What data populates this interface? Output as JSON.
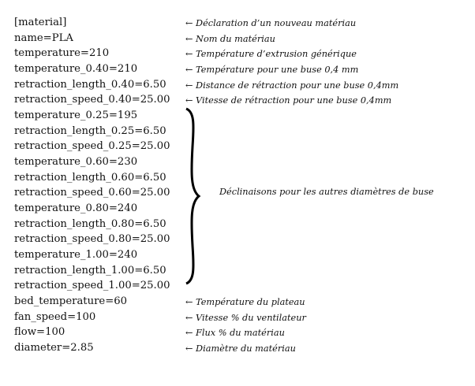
{
  "lines": [
    {
      "code": "[material]",
      "comment": "← Déclaration d’un nouveau matériau"
    },
    {
      "code": "name=PLA",
      "comment": "← Nom du matériau"
    },
    {
      "code": "temperature=210",
      "comment": "← Température d’extrusion générique"
    },
    {
      "code": "temperature_0.40=210",
      "comment": "← Température pour une buse 0,4 mm"
    },
    {
      "code": "retraction_length_0.40=6.50",
      "comment": "← Distance de rétraction pour une buse 0,4mm"
    },
    {
      "code": "retraction_speed_0.40=25.00",
      "comment": "← Vitesse de rétraction pour une buse 0,4mm"
    },
    {
      "code": "temperature_0.25=195",
      "comment": ""
    },
    {
      "code": "retraction_length_0.25=6.50",
      "comment": ""
    },
    {
      "code": "retraction_speed_0.25=25.00",
      "comment": ""
    },
    {
      "code": "temperature_0.60=230",
      "comment": ""
    },
    {
      "code": "retraction_length_0.60=6.50",
      "comment": ""
    },
    {
      "code": "retraction_speed_0.60=25.00",
      "comment": ""
    },
    {
      "code": "temperature_0.80=240",
      "comment": ""
    },
    {
      "code": "retraction_length_0.80=6.50",
      "comment": ""
    },
    {
      "code": "retraction_speed_0.80=25.00",
      "comment": ""
    },
    {
      "code": "temperature_1.00=240",
      "comment": ""
    },
    {
      "code": "retraction_length_1.00=6.50",
      "comment": ""
    },
    {
      "code": "retraction_speed_1.00=25.00",
      "comment": ""
    },
    {
      "code": "bed_temperature=60",
      "comment": "← Température du plateau"
    },
    {
      "code": "fan_speed=100",
      "comment": "← Vitesse % du ventilateur"
    },
    {
      "code": "flow=100",
      "comment": "← Flux % du matériau"
    },
    {
      "code": "diameter=2.85",
      "comment": "← Diamètre du matériau"
    }
  ],
  "group_label": "Déclinaisons pour les autres diamètres de buse"
}
